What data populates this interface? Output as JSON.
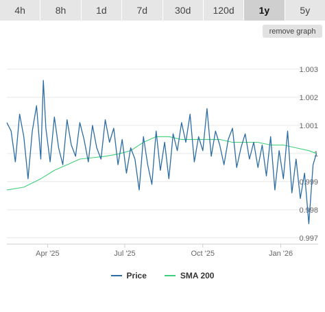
{
  "ranges": {
    "tabs": [
      {
        "label": "4h"
      },
      {
        "label": "8h"
      },
      {
        "label": "1d"
      },
      {
        "label": "7d"
      },
      {
        "label": "30d"
      },
      {
        "label": "120d"
      },
      {
        "label": "1y"
      },
      {
        "label": "5y"
      }
    ],
    "active": "1y"
  },
  "remove_graph_label": "remove graph",
  "colors": {
    "price": "#2b6ca3",
    "sma": "#3fcf7a",
    "grid": "#e6e6e6",
    "axis_text": "#666666",
    "tab_bg": "#e6e6e6",
    "tab_active_bg": "#cfcfcf"
  },
  "chart_data": {
    "type": "line",
    "x_ticks": [
      "Apr '25",
      "Jul '25",
      "Oct '25",
      "Jan '26"
    ],
    "y_ticks": [
      0.997,
      0.998,
      0.999,
      1,
      1.001,
      1.002,
      1.003
    ],
    "y_tick_labels": [
      "0.997",
      "0.998",
      "0.999",
      "1",
      "1.001",
      "1.002",
      "1.003"
    ],
    "ylim": [
      0.9968,
      1.0039
    ],
    "xlim": [
      "2025-02-12",
      "2026-02-14"
    ],
    "y_axis_side": "right",
    "grid": "horizontal",
    "legend_position": "bottom",
    "series": [
      {
        "name": "Price",
        "x": [
          "2025-02-12",
          "2025-02-17",
          "2025-02-22",
          "2025-02-27",
          "2025-03-04",
          "2025-03-09",
          "2025-03-14",
          "2025-03-19",
          "2025-03-24",
          "2025-03-27",
          "2025-03-30",
          "2025-04-04",
          "2025-04-09",
          "2025-04-14",
          "2025-04-19",
          "2025-04-24",
          "2025-04-29",
          "2025-05-04",
          "2025-05-09",
          "2025-05-14",
          "2025-05-19",
          "2025-05-24",
          "2025-05-29",
          "2025-06-03",
          "2025-06-08",
          "2025-06-13",
          "2025-06-18",
          "2025-06-23",
          "2025-06-28",
          "2025-07-03",
          "2025-07-08",
          "2025-07-13",
          "2025-07-18",
          "2025-07-23",
          "2025-07-28",
          "2025-08-02",
          "2025-08-07",
          "2025-08-12",
          "2025-08-17",
          "2025-08-22",
          "2025-08-27",
          "2025-09-01",
          "2025-09-06",
          "2025-09-11",
          "2025-09-16",
          "2025-09-21",
          "2025-09-26",
          "2025-10-01",
          "2025-10-06",
          "2025-10-11",
          "2025-10-16",
          "2025-10-21",
          "2025-10-26",
          "2025-10-31",
          "2025-11-05",
          "2025-11-10",
          "2025-11-15",
          "2025-11-20",
          "2025-11-25",
          "2025-11-30",
          "2025-12-05",
          "2025-12-10",
          "2025-12-15",
          "2025-12-20",
          "2025-12-25",
          "2025-12-30",
          "2026-01-04",
          "2026-01-09",
          "2026-01-14",
          "2026-01-19",
          "2026-01-24",
          "2026-01-29",
          "2026-02-03",
          "2026-02-08",
          "2026-02-12"
        ],
        "values": [
          1.0011,
          1.0008,
          0.9997,
          1.0014,
          1.0006,
          0.9991,
          1.0008,
          1.0017,
          0.9998,
          1.0026,
          1.0009,
          0.9997,
          1.0013,
          1.0002,
          0.9996,
          1.0012,
          1.0003,
          0.9999,
          1.0011,
          1.0005,
          0.9997,
          1.001,
          1.0002,
          0.9998,
          1.0012,
          1.0004,
          1.0009,
          0.9996,
          1.0005,
          0.9993,
          1.0002,
          0.9998,
          0.9987,
          1.0006,
          0.9996,
          0.9989,
          1.0008,
          0.9994,
          1.0004,
          0.9991,
          1.0007,
          1.0001,
          1.0011,
          1.0004,
          1.0014,
          0.9997,
          1.0006,
          1.0001,
          1.0016,
          0.9999,
          1.0008,
          1.0003,
          0.9996,
          1.0005,
          1.0009,
          0.9995,
          1.0002,
          1.0007,
          0.9998,
          1.0004,
          0.9995,
          1.0003,
          0.9992,
          1.0006,
          0.9987,
          1.0001,
          0.9991,
          1.0008,
          0.9986,
          0.9998,
          0.9984,
          0.9993,
          0.9975,
          0.9996,
          1.0
        ]
      },
      {
        "name": "SMA 200",
        "x": [
          "2025-02-12",
          "2025-03-04",
          "2025-03-24",
          "2025-04-09",
          "2025-04-24",
          "2025-05-09",
          "2025-05-24",
          "2025-06-08",
          "2025-06-23",
          "2025-07-08",
          "2025-07-23",
          "2025-08-07",
          "2025-08-22",
          "2025-09-06",
          "2025-09-21",
          "2025-10-06",
          "2025-10-21",
          "2025-11-05",
          "2025-11-20",
          "2025-12-05",
          "2025-12-20",
          "2026-01-04",
          "2026-01-19",
          "2026-02-03",
          "2026-02-12"
        ],
        "values": [
          0.9987,
          0.9988,
          0.9991,
          0.9994,
          0.9996,
          0.9998,
          0.99985,
          0.9999,
          0.99998,
          1.0001,
          1.0004,
          1.0006,
          1.0006,
          1.0005,
          1.0005,
          1.0005,
          1.0005,
          1.0004,
          1.0004,
          1.0004,
          1.0003,
          1.0003,
          1.0002,
          1.0001,
          1.0
        ]
      }
    ]
  },
  "legend": {
    "price_label": "Price",
    "sma_label": "SMA 200"
  }
}
